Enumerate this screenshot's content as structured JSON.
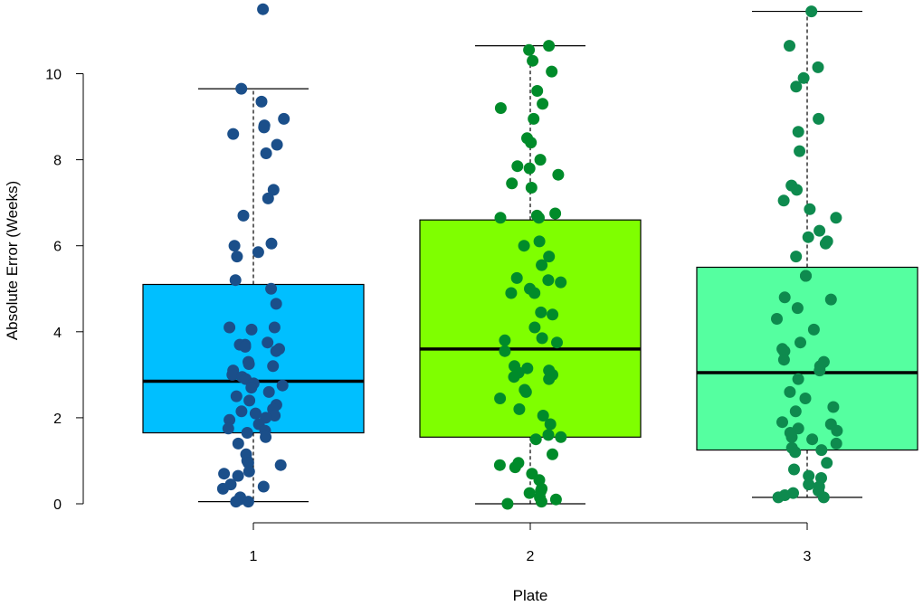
{
  "chart_data": {
    "type": "boxplot",
    "title": "",
    "xlabel": "Plate",
    "ylabel": "Absolute Error (Weeks)",
    "ylim": [
      0,
      11.5
    ],
    "yticks": [
      0,
      2,
      4,
      6,
      8,
      10
    ],
    "categories": [
      "1",
      "2",
      "3"
    ],
    "boxes": [
      {
        "name": "1",
        "lower_whisker": 0.05,
        "q1": 1.65,
        "median": 2.85,
        "q3": 5.1,
        "upper_whisker": 9.65,
        "box_color": "#00BFFF",
        "point_color": "#1B4F8A",
        "points": [
          11.5,
          9.65,
          9.35,
          8.95,
          8.8,
          8.75,
          8.6,
          8.35,
          8.15,
          7.3,
          7.1,
          6.7,
          6.05,
          6.0,
          5.85,
          5.75,
          5.2,
          5.0,
          4.65,
          4.1,
          4.1,
          4.05,
          3.75,
          3.7,
          3.7,
          3.65,
          3.6,
          3.55,
          3.3,
          3.25,
          3.2,
          3.1,
          3.0,
          2.95,
          2.9,
          2.8,
          2.75,
          2.7,
          2.6,
          2.5,
          2.4,
          2.3,
          2.2,
          2.15,
          2.1,
          2.05,
          2.0,
          1.95,
          1.85,
          1.75,
          1.7,
          1.65,
          1.55,
          1.4,
          1.15,
          1.0,
          0.95,
          0.9,
          0.75,
          0.7,
          0.65,
          0.45,
          0.4,
          0.35,
          0.15,
          0.1,
          0.05,
          0.05
        ]
      },
      {
        "name": "2",
        "lower_whisker": 0.0,
        "q1": 1.55,
        "median": 3.6,
        "q3": 6.6,
        "upper_whisker": 10.65,
        "box_color": "#7FFF00",
        "point_color": "#008B2A",
        "points": [
          10.65,
          10.55,
          10.3,
          10.05,
          9.6,
          9.3,
          9.2,
          8.95,
          8.5,
          8.4,
          8.0,
          7.85,
          7.8,
          7.65,
          7.45,
          7.35,
          6.75,
          6.7,
          6.65,
          6.65,
          6.1,
          6.0,
          5.75,
          5.55,
          5.25,
          5.2,
          5.15,
          5.0,
          4.9,
          4.9,
          4.45,
          4.4,
          4.1,
          3.85,
          3.8,
          3.75,
          3.55,
          3.2,
          3.15,
          3.1,
          3.05,
          3.0,
          2.95,
          2.9,
          2.65,
          2.6,
          2.45,
          2.2,
          2.05,
          1.85,
          1.6,
          1.55,
          1.5,
          1.15,
          0.95,
          0.9,
          0.85,
          0.7,
          0.55,
          0.35,
          0.3,
          0.25,
          0.15,
          0.1,
          0.05,
          0.0
        ]
      },
      {
        "name": "3",
        "lower_whisker": 0.15,
        "q1": 1.25,
        "median": 3.05,
        "q3": 5.5,
        "upper_whisker": 11.45,
        "box_color": "#55FFA0",
        "point_color": "#0E8A4E",
        "points": [
          11.45,
          10.65,
          10.15,
          9.9,
          9.7,
          8.95,
          8.65,
          8.2,
          7.4,
          7.3,
          7.05,
          6.85,
          6.65,
          6.35,
          6.2,
          6.1,
          6.05,
          5.75,
          5.3,
          5.3,
          4.8,
          4.75,
          4.55,
          4.3,
          4.05,
          3.75,
          3.6,
          3.55,
          3.55,
          3.35,
          3.3,
          3.2,
          3.1,
          2.9,
          2.6,
          2.45,
          2.25,
          2.15,
          1.9,
          1.85,
          1.75,
          1.7,
          1.65,
          1.55,
          1.5,
          1.4,
          1.3,
          1.25,
          1.2,
          0.95,
          0.8,
          0.65,
          0.6,
          0.45,
          0.4,
          0.3,
          0.25,
          0.2,
          0.15,
          0.15
        ]
      }
    ]
  }
}
